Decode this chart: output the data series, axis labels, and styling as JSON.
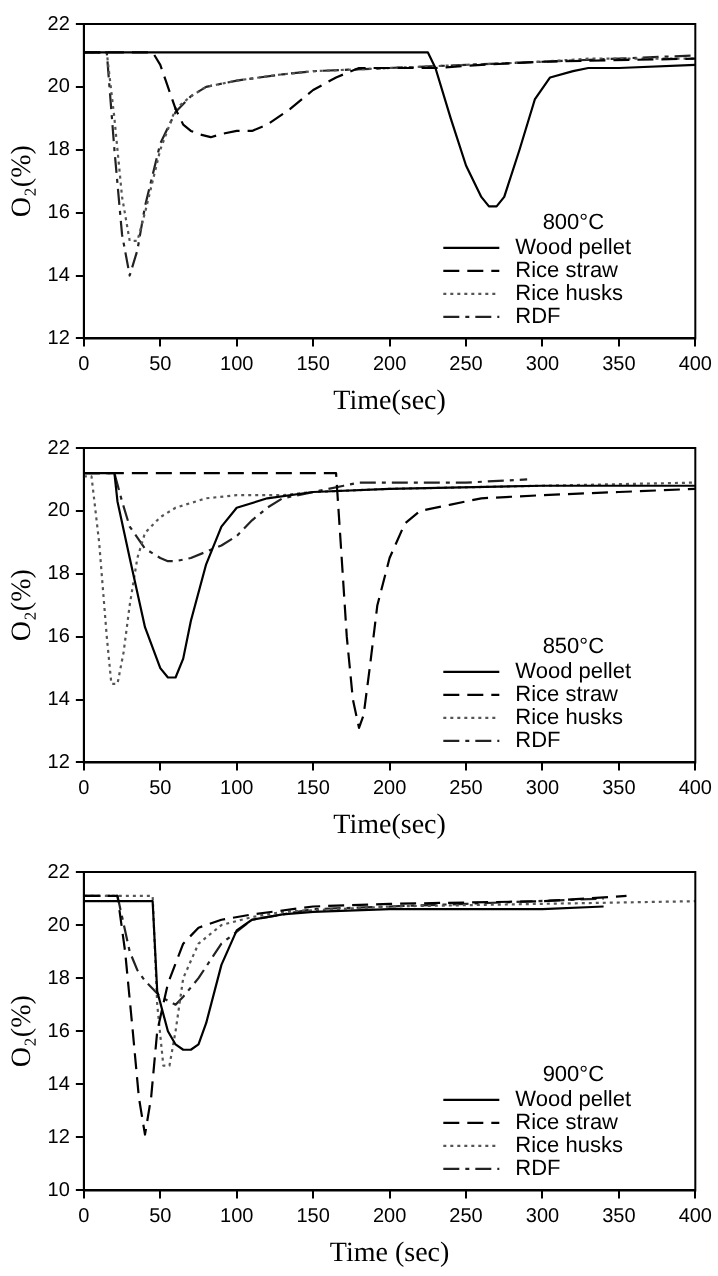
{
  "chart_data": [
    {
      "type": "line",
      "xlabel": "Time(sec)",
      "ylabel": "O₂(%)",
      "legend_title": "800°C",
      "legend": "bottom right",
      "grid": false,
      "marker": "none",
      "xlim": [
        0,
        400
      ],
      "xticks": [
        0,
        50,
        100,
        150,
        200,
        250,
        300,
        350,
        400
      ],
      "ylim": [
        12,
        22
      ],
      "yticks": [
        12,
        14,
        16,
        18,
        20,
        22
      ],
      "series": [
        {
          "name": "Wood pellet",
          "color": "#000000",
          "line_style": "solid",
          "x": [
            0,
            225,
            230,
            240,
            250,
            260,
            265,
            270,
            275,
            285,
            295,
            305,
            320,
            330,
            350,
            400
          ],
          "values": [
            21.1,
            21.1,
            20.6,
            19,
            17.5,
            16.5,
            16.2,
            16.2,
            16.5,
            18,
            19.6,
            20.3,
            20.5,
            20.6,
            20.6,
            20.7
          ]
        },
        {
          "name": "Rice straw",
          "color": "#000000",
          "line_style": "dashed",
          "x": [
            0,
            45,
            50,
            55,
            60,
            65,
            70,
            75,
            83,
            90,
            100,
            110,
            120,
            135,
            150,
            165,
            180,
            200,
            230,
            260,
            300,
            400
          ],
          "values": [
            21.1,
            21.1,
            20.7,
            20,
            19.3,
            18.8,
            18.6,
            18.5,
            18.4,
            18.5,
            18.6,
            18.6,
            18.8,
            19.3,
            19.9,
            20.3,
            20.6,
            20.6,
            20.6,
            20.7,
            20.8,
            20.9
          ]
        },
        {
          "name": "Rice husks",
          "color": "#555555",
          "line_style": "dotted",
          "x": [
            0,
            15,
            20,
            25,
            30,
            35,
            40,
            50,
            60,
            70,
            80,
            100,
            130,
            150,
            200,
            250,
            300,
            330,
            400
          ],
          "values": [
            21.1,
            21.1,
            19,
            16.5,
            15.1,
            15.1,
            16,
            18,
            19.3,
            19.7,
            20,
            20.2,
            20.4,
            20.5,
            20.6,
            20.7,
            20.8,
            20.9,
            20.9
          ]
        },
        {
          "name": "RDF",
          "color": "#222222",
          "line_style": "dashdot",
          "x": [
            0,
            15,
            20,
            25,
            30,
            35,
            40,
            50,
            60,
            70,
            80,
            100,
            130,
            150,
            200,
            250,
            300,
            350,
            400
          ],
          "values": [
            21.1,
            21.1,
            18,
            15.3,
            14,
            14.8,
            16.2,
            18.2,
            19.2,
            19.7,
            20,
            20.2,
            20.4,
            20.5,
            20.6,
            20.7,
            20.8,
            20.9,
            21
          ]
        }
      ]
    },
    {
      "type": "line",
      "xlabel": "Time(sec)",
      "ylabel": "O₂(%)",
      "legend_title": "850°C",
      "legend": "bottom right",
      "grid": false,
      "marker": "none",
      "xlim": [
        0,
        400
      ],
      "xticks": [
        0,
        50,
        100,
        150,
        200,
        250,
        300,
        350,
        400
      ],
      "ylim": [
        12,
        22
      ],
      "yticks": [
        12,
        14,
        16,
        18,
        20,
        22
      ],
      "series": [
        {
          "name": "Wood pellet",
          "color": "#000000",
          "line_style": "solid",
          "x": [
            0,
            20,
            22,
            30,
            40,
            50,
            55,
            60,
            65,
            70,
            80,
            90,
            100,
            120,
            150,
            200,
            300,
            400
          ],
          "values": [
            21.2,
            21.2,
            20.3,
            18.5,
            16.3,
            15,
            14.7,
            14.7,
            15.3,
            16.5,
            18.3,
            19.5,
            20.1,
            20.4,
            20.6,
            20.7,
            20.8,
            20.8
          ]
        },
        {
          "name": "Rice straw",
          "color": "#000000",
          "line_style": "dashed",
          "x": [
            0,
            165,
            168,
            172,
            176,
            180,
            183,
            187,
            192,
            200,
            210,
            220,
            240,
            260,
            300,
            350,
            400
          ],
          "values": [
            21.2,
            21.2,
            19,
            16,
            14,
            13.1,
            13.5,
            15,
            17,
            18.5,
            19.6,
            20,
            20.2,
            20.4,
            20.5,
            20.6,
            20.7
          ]
        },
        {
          "name": "Rice husks",
          "color": "#555555",
          "line_style": "dotted",
          "x": [
            0,
            5,
            10,
            15,
            18,
            22,
            26,
            30,
            35,
            40,
            50,
            60,
            80,
            100,
            130,
            150,
            200,
            300,
            400
          ],
          "values": [
            21.1,
            21.1,
            19,
            16,
            14.5,
            14.5,
            15.5,
            17,
            18.5,
            19.3,
            19.8,
            20.1,
            20.4,
            20.5,
            20.5,
            20.6,
            20.7,
            20.8,
            20.9
          ]
        },
        {
          "name": "RDF",
          "color": "#222222",
          "line_style": "dashdot",
          "x": [
            0,
            20,
            25,
            30,
            40,
            50,
            55,
            60,
            70,
            80,
            90,
            100,
            110,
            120,
            130,
            150,
            170,
            180,
            250,
            290
          ],
          "values": [
            21.2,
            21.2,
            20.3,
            19.5,
            18.8,
            18.5,
            18.4,
            18.4,
            18.5,
            18.7,
            18.9,
            19.2,
            19.7,
            20.1,
            20.4,
            20.6,
            20.8,
            20.9,
            20.9,
            21
          ]
        }
      ]
    },
    {
      "type": "line",
      "xlabel": "Time (sec)",
      "ylabel": "O₂(%)",
      "legend_title": "900°C",
      "legend": "bottom right",
      "grid": false,
      "marker": "none",
      "xlim": [
        0,
        400
      ],
      "xticks": [
        0,
        50,
        100,
        150,
        200,
        250,
        300,
        350,
        400
      ],
      "ylim": [
        10,
        22
      ],
      "yticks": [
        10,
        12,
        14,
        16,
        18,
        20,
        22
      ],
      "series": [
        {
          "name": "Wood pellet",
          "color": "#000000",
          "line_style": "solid",
          "x": [
            0,
            45,
            48,
            55,
            60,
            65,
            70,
            75,
            80,
            90,
            100,
            110,
            130,
            150,
            200,
            300,
            340
          ],
          "values": [
            20.9,
            20.9,
            17.5,
            16,
            15.5,
            15.3,
            15.3,
            15.5,
            16.3,
            18.5,
            19.8,
            20.2,
            20.4,
            20.5,
            20.6,
            20.6,
            20.7
          ]
        },
        {
          "name": "Rice straw",
          "color": "#000000",
          "line_style": "dashed",
          "x": [
            0,
            22,
            27,
            32,
            36,
            40,
            44,
            48,
            55,
            65,
            75,
            90,
            110,
            150,
            200,
            300,
            355
          ],
          "values": [
            21.1,
            21.1,
            19,
            16,
            13.5,
            12.1,
            13.5,
            16,
            17.8,
            19.3,
            19.9,
            20.2,
            20.4,
            20.7,
            20.8,
            20.9,
            21.1
          ]
        },
        {
          "name": "Rice husks",
          "color": "#555555",
          "line_style": "dotted",
          "x": [
            0,
            45,
            48,
            52,
            56,
            60,
            65,
            75,
            90,
            110,
            130,
            200,
            300,
            400
          ],
          "values": [
            21.1,
            21.1,
            17,
            14.7,
            14.7,
            16,
            18,
            19.3,
            20,
            20.3,
            20.5,
            20.7,
            20.8,
            20.9
          ]
        },
        {
          "name": "RDF",
          "color": "#222222",
          "line_style": "dashdot",
          "x": [
            0,
            22,
            30,
            35,
            40,
            50,
            60,
            65,
            75,
            90,
            110,
            150,
            250,
            340
          ],
          "values": [
            21.1,
            21.1,
            19,
            18.3,
            17.9,
            17.3,
            17,
            17.3,
            18,
            19.3,
            20.2,
            20.6,
            20.8,
            21
          ]
        }
      ]
    }
  ]
}
